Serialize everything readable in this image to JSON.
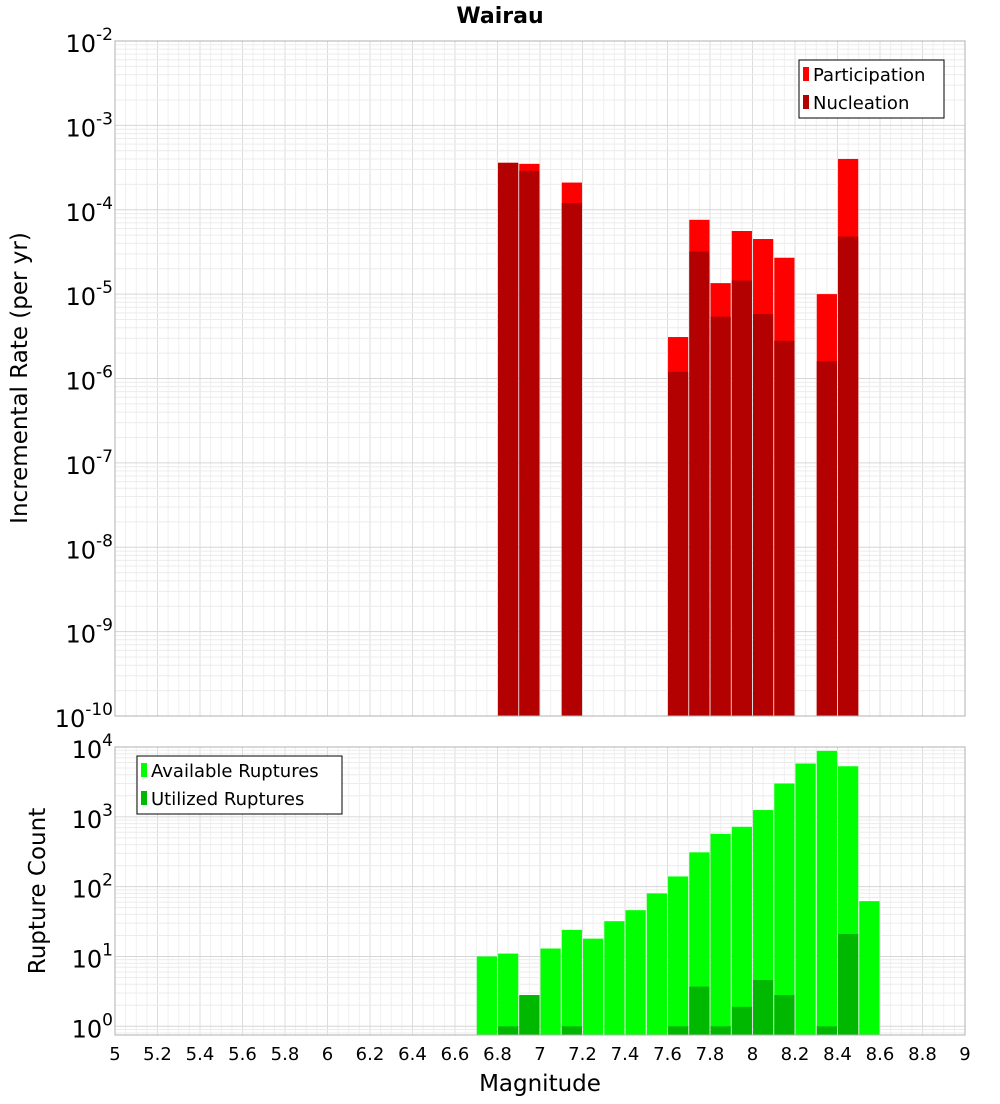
{
  "chart_data": [
    {
      "type": "bar",
      "title": "Wairau",
      "xlabel": "",
      "ylabel": "Incremental Rate (per yr)",
      "log_y": true,
      "xlim": [
        5,
        9
      ],
      "ylim": [
        1e-10,
        0.01
      ],
      "y_ticks": [
        {
          "base": "10",
          "exp": "-10"
        },
        {
          "base": "10",
          "exp": "-9"
        },
        {
          "base": "10",
          "exp": "-8"
        },
        {
          "base": "10",
          "exp": "-7"
        },
        {
          "base": "10",
          "exp": "-6"
        },
        {
          "base": "10",
          "exp": "-5"
        },
        {
          "base": "10",
          "exp": "-4"
        },
        {
          "base": "10",
          "exp": "-3"
        },
        {
          "base": "10",
          "exp": "-2"
        }
      ],
      "grid": true,
      "legend_position": "top-right",
      "colors": {
        "Participation": "#ff0000",
        "Nucleation": "#b30000"
      },
      "bar_width": 0.095,
      "series": [
        {
          "name": "Participation",
          "x": [
            6.85,
            6.95,
            7.15,
            7.65,
            7.75,
            7.85,
            7.95,
            8.05,
            8.15,
            8.35,
            8.45
          ],
          "values": [
            0.00036,
            0.00035,
            0.00021,
            3.1e-06,
            7.6e-05,
            1.35e-05,
            5.6e-05,
            4.5e-05,
            2.7e-05,
            1e-05,
            0.0004
          ]
        },
        {
          "name": "Nucleation",
          "x": [
            6.85,
            6.95,
            7.15,
            7.65,
            7.75,
            7.85,
            7.95,
            8.05,
            8.15,
            8.35,
            8.45
          ],
          "values": [
            0.00036,
            0.00029,
            0.00012,
            1.2e-06,
            3.2e-05,
            5.4e-06,
            1.45e-05,
            5.8e-06,
            2.8e-06,
            1.6e-06,
            4.8e-05
          ]
        }
      ]
    },
    {
      "type": "bar",
      "title": "",
      "xlabel": "Magnitude",
      "ylabel": "Rupture Count",
      "log_y": true,
      "xlim": [
        5,
        9
      ],
      "ylim": [
        0.75,
        10000
      ],
      "x_ticks": [
        "5",
        "5.2",
        "5.4",
        "5.6",
        "5.8",
        "6",
        "6.2",
        "6.4",
        "6.6",
        "6.8",
        "7",
        "7.2",
        "7.4",
        "7.6",
        "7.8",
        "8",
        "8.2",
        "8.4",
        "8.6",
        "8.8",
        "9"
      ],
      "y_ticks": [
        {
          "base": "10",
          "exp": "0"
        },
        {
          "base": "10",
          "exp": "1"
        },
        {
          "base": "10",
          "exp": "2"
        },
        {
          "base": "10",
          "exp": "3"
        },
        {
          "base": "10",
          "exp": "4"
        }
      ],
      "grid": true,
      "legend_position": "top-left",
      "colors": {
        "Available Ruptures": "#00ff00",
        "Utilized Ruptures": "#00b800"
      },
      "bar_width": 0.095,
      "series": [
        {
          "name": "Available Ruptures",
          "x": [
            6.75,
            6.85,
            6.95,
            7.05,
            7.15,
            7.25,
            7.35,
            7.45,
            7.55,
            7.65,
            7.75,
            7.85,
            7.95,
            8.05,
            8.15,
            8.25,
            8.35,
            8.45,
            8.55
          ],
          "values": [
            10,
            11,
            2.8,
            13,
            24,
            18,
            32,
            46,
            80,
            140,
            310,
            570,
            720,
            1250,
            3000,
            5800,
            8800,
            5300,
            62
          ]
        },
        {
          "name": "Utilized Ruptures",
          "x": [
            6.85,
            6.95,
            7.15,
            7.65,
            7.75,
            7.85,
            7.95,
            8.05,
            8.15,
            8.35,
            8.45
          ],
          "values": [
            1,
            2.8,
            1,
            1,
            3.7,
            1,
            1.9,
            4.6,
            2.8,
            1,
            21
          ]
        }
      ]
    }
  ]
}
